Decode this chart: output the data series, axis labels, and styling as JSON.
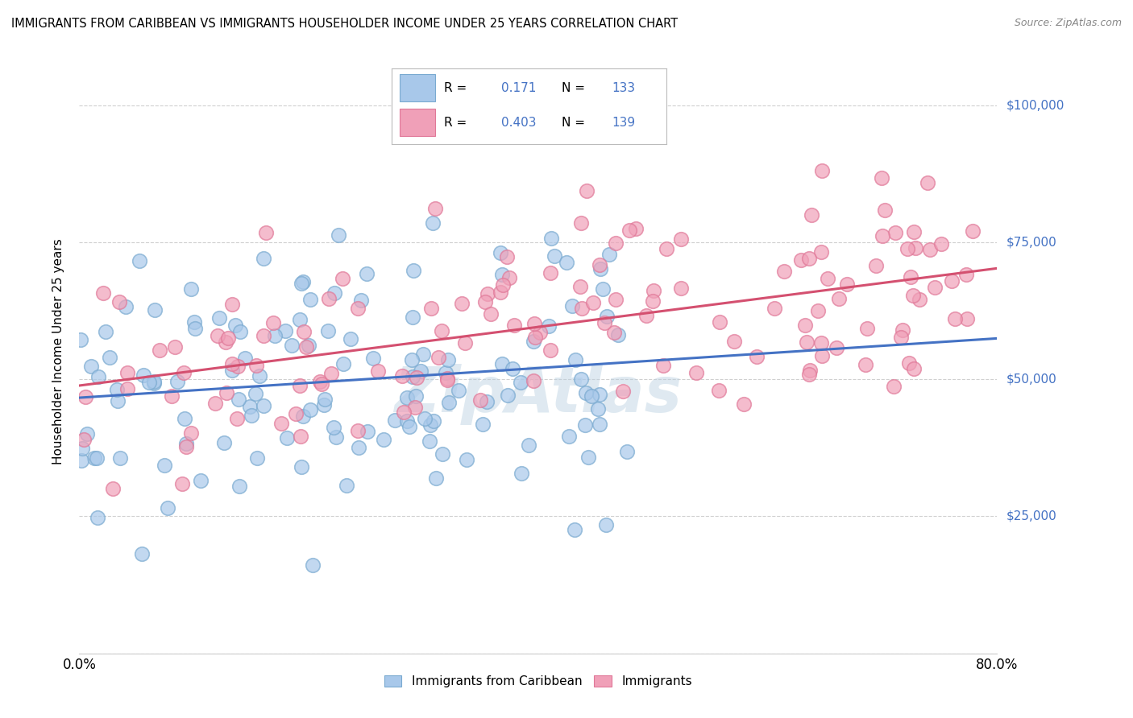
{
  "title": "IMMIGRANTS FROM CARIBBEAN VS IMMIGRANTS HOUSEHOLDER INCOME UNDER 25 YEARS CORRELATION CHART",
  "source": "Source: ZipAtlas.com",
  "ylabel": "Householder Income Under 25 years",
  "blue_R": 0.171,
  "blue_N": 133,
  "pink_R": 0.403,
  "pink_N": 139,
  "blue_color": "#a8c8ea",
  "pink_color": "#f0a0b8",
  "blue_edge_color": "#7aaad0",
  "pink_edge_color": "#e07898",
  "blue_line_color": "#4472c4",
  "pink_line_color": "#d45070",
  "watermark": "ZipAtlas",
  "legend_label_blue": "Immigrants from Caribbean",
  "legend_label_pink": "Immigrants",
  "xlim": [
    0.0,
    0.8
  ],
  "ylim": [
    0,
    110000
  ],
  "x_ticks": [
    0.0,
    0.1,
    0.2,
    0.3,
    0.4,
    0.5,
    0.6,
    0.7,
    0.8
  ],
  "y_ticks": [
    0,
    25000,
    50000,
    75000,
    100000
  ],
  "background_color": "#ffffff",
  "grid_color": "#d0d0d0",
  "right_label_color": "#4472c4",
  "seed": 12
}
